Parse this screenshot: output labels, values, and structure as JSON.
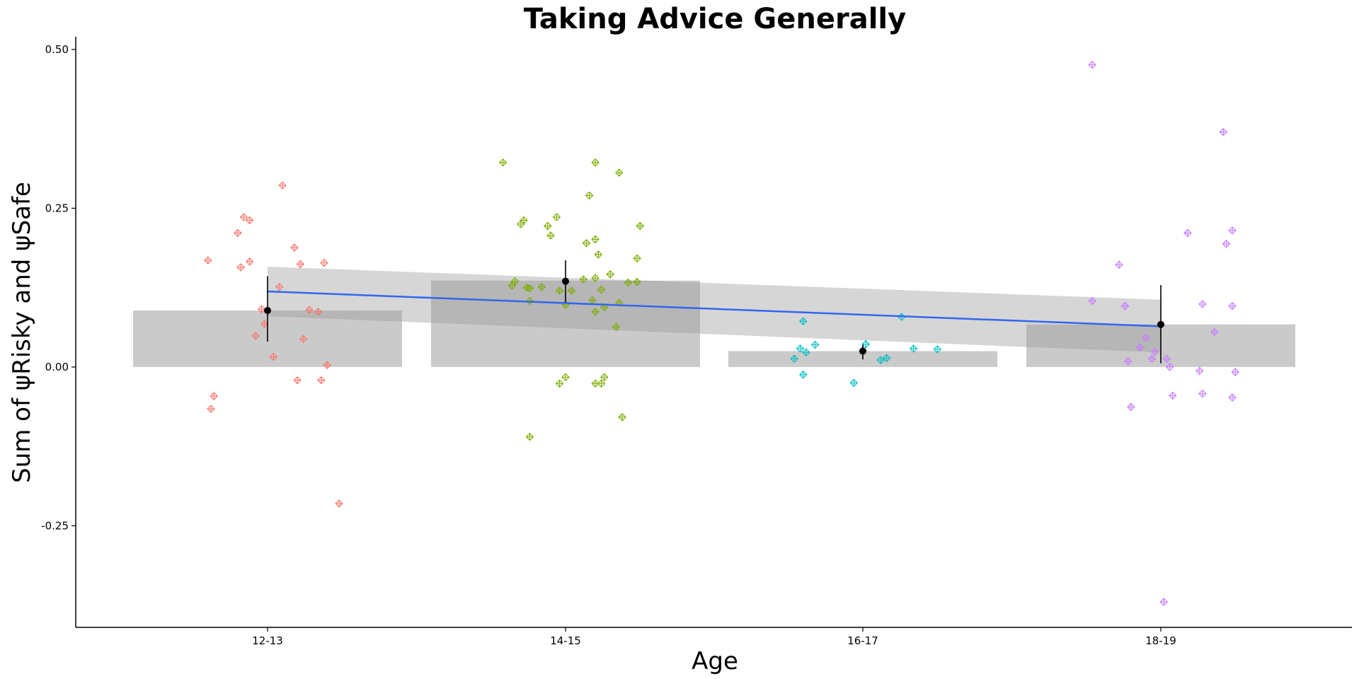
{
  "chart_data": {
    "type": "bar",
    "title": "Taking Advice Generally",
    "xlabel": "Age",
    "ylabel": "Sum of ψRisky and ψSafe",
    "categories": [
      "12-13",
      "14-15",
      "16-17",
      "18-19"
    ],
    "ylim": [
      -0.41,
      0.52
    ],
    "yticks": [
      -0.25,
      0.0,
      0.25,
      0.5
    ],
    "ytick_labels": [
      "-0.25",
      "0.00",
      "0.25",
      "0.50"
    ],
    "grid": false,
    "legend": "none",
    "bars": {
      "color": "#b3b3b3",
      "values": [
        0.089,
        0.136,
        0.025,
        0.067
      ]
    },
    "means": {
      "color": "#000000",
      "values": [
        0.089,
        0.135,
        0.025,
        0.067
      ],
      "err_low": [
        0.04,
        0.102,
        0.012,
        0.006
      ],
      "err_high": [
        0.143,
        0.168,
        0.035,
        0.129
      ]
    },
    "trend": {
      "color": "#3366ee",
      "y_start": 0.119,
      "y_end": 0.064,
      "ci_start": [
        0.08,
        0.158
      ],
      "ci_end": [
        0.023,
        0.106
      ]
    },
    "points": {
      "marker": "diamond-cross",
      "colors": [
        "#f8766d",
        "#7cae00",
        "#00bfc4",
        "#c77cff"
      ],
      "series": [
        {
          "category": "12-13",
          "x": [
            -0.2,
            -0.18,
            -0.19,
            -0.09,
            -0.08,
            -0.06,
            -0.1,
            -0.06,
            -0.02,
            -0.04,
            -0.01,
            0.02,
            0.05,
            0.04,
            0.09,
            0.12,
            0.1,
            0.11,
            0.19,
            0.18,
            0.2,
            0.14,
            0.17,
            0.24
          ],
          "y": [
            0.168,
            -0.046,
            -0.066,
            0.157,
            0.236,
            0.231,
            0.211,
            0.166,
            0.091,
            0.049,
            0.068,
            0.016,
            0.286,
            0.126,
            0.188,
            0.044,
            -0.021,
            0.162,
            0.164,
            -0.021,
            0.003,
            0.09,
            0.087,
            -0.215
          ]
        },
        {
          "category": "14-15",
          "x": [
            -0.21,
            -0.18,
            -0.17,
            -0.13,
            -0.15,
            -0.14,
            -0.12,
            -0.12,
            -0.08,
            -0.06,
            -0.05,
            -0.03,
            -0.02,
            0.02,
            0.06,
            0.07,
            0.1,
            0.1,
            0.11,
            0.12,
            0.08,
            0.1,
            0.13,
            0.15,
            0.18,
            0.17,
            0.25,
            0.24,
            0.21,
            0.24,
            0.09,
            0.12,
            -0.02,
            0.0,
            0.0,
            0.1,
            0.13,
            0.19,
            -0.12,
            0.1,
            0.18
          ],
          "y": [
            0.322,
            0.128,
            0.135,
            0.125,
            0.225,
            0.231,
            0.104,
            0.124,
            0.126,
            0.222,
            0.207,
            0.236,
            0.12,
            0.12,
            0.138,
            0.195,
            0.322,
            0.201,
            0.177,
            0.122,
            0.27,
            0.087,
            0.094,
            0.146,
            0.306,
            0.063,
            0.222,
            0.171,
            0.133,
            0.134,
            0.105,
            -0.026,
            -0.026,
            -0.016,
            0.098,
            0.14,
            -0.016,
            -0.079,
            -0.11,
            -0.026,
            0.101
          ]
        },
        {
          "category": "16-17",
          "x": -0.23,
          "x_list": [
            -0.23,
            -0.2,
            -0.19,
            -0.16,
            -0.2,
            -0.03,
            0.0,
            0.01,
            0.06,
            0.08,
            0.13,
            0.17,
            0.25,
            -0.21
          ],
          "y": [
            0.013,
            0.072,
            0.023,
            0.035,
            -0.012,
            -0.025,
            0.026,
            0.036,
            0.011,
            0.014,
            0.079,
            0.029,
            0.028,
            0.029
          ]
        },
        {
          "category": "18-19",
          "x": [
            -0.23,
            -0.23,
            -0.14,
            -0.11,
            -0.1,
            -0.12,
            -0.07,
            -0.05,
            -0.03,
            -0.02,
            0.01,
            0.02,
            0.04,
            0.09,
            0.14,
            0.14,
            0.18,
            0.21,
            0.22,
            0.24,
            0.24,
            0.25,
            0.24,
            0.13,
            0.03
          ],
          "y": [
            0.476,
            0.104,
            0.161,
            0.009,
            -0.063,
            0.096,
            0.031,
            0.046,
            0.013,
            0.024,
            -0.37,
            0.013,
            -0.045,
            0.211,
            0.099,
            -0.042,
            0.055,
            0.37,
            0.194,
            0.215,
            0.096,
            -0.008,
            -0.048,
            -0.006,
            0.0
          ]
        }
      ]
    }
  }
}
